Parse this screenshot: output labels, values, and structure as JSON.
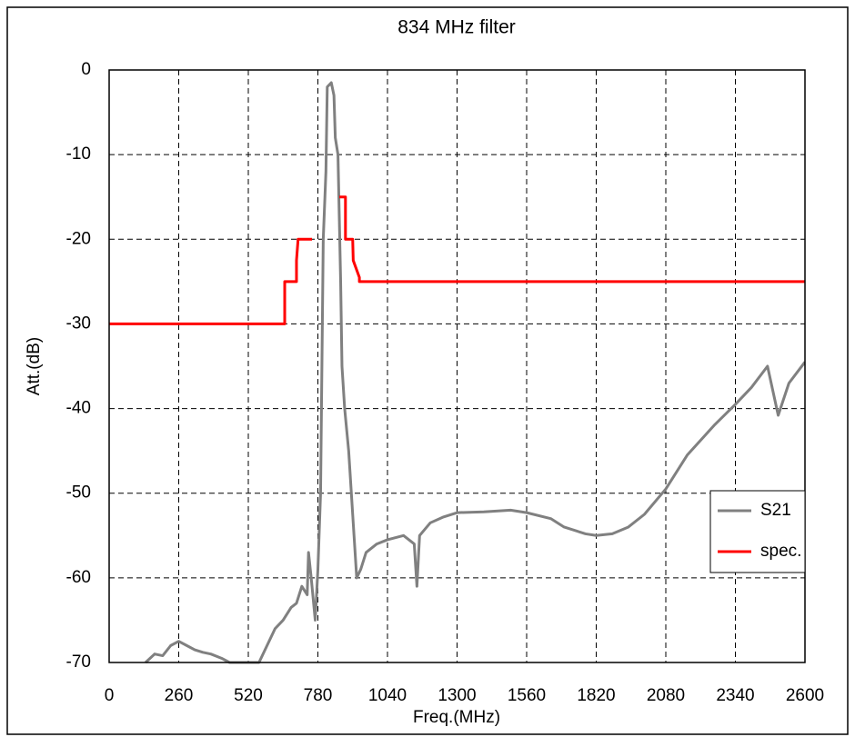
{
  "chart_data": {
    "type": "line",
    "title": "834 MHz filter",
    "x_label": "Freq.(MHz)",
    "y_label": "Att.(dB)",
    "xlim": [
      0,
      2600
    ],
    "xticks": [
      0,
      260,
      520,
      780,
      1040,
      1300,
      1560,
      1820,
      2080,
      2340,
      2600
    ],
    "ylim": [
      -70,
      0
    ],
    "yticks": [
      0,
      -10,
      -20,
      -30,
      -40,
      -50,
      -60,
      -70
    ],
    "grid": true,
    "legend": "right",
    "series": [
      {
        "name": "S21",
        "color": "#808080",
        "x": [
          136,
          170,
          200,
          230,
          260,
          290,
          320,
          350,
          380,
          420,
          450,
          476,
          544,
          560,
          590,
          620,
          650,
          680,
          700,
          720,
          740,
          745,
          755,
          770,
          780,
          790,
          800,
          810,
          815,
          830,
          840,
          845,
          855,
          865,
          870,
          880,
          895,
          905,
          915,
          925,
          940,
          960,
          1000,
          1040,
          1100,
          1140,
          1150,
          1160,
          1200,
          1250,
          1300,
          1400,
          1500,
          1560,
          1650,
          1700,
          1780,
          1820,
          1880,
          1940,
          2000,
          2080,
          2160,
          2260,
          2340,
          2400,
          2460,
          2500,
          2540,
          2600
        ],
        "values": [
          -70,
          -69,
          -69.2,
          -68,
          -67.5,
          -68,
          -68.5,
          -68.8,
          -69,
          -69.5,
          -70,
          -70,
          -70,
          -70,
          -68,
          -66,
          -65,
          -63.5,
          -63,
          -61,
          -62,
          -57,
          -60,
          -65,
          -59,
          -50,
          -20,
          -12,
          -2,
          -1.5,
          -3,
          -8,
          -10,
          -25,
          -35,
          -40,
          -45,
          -50,
          -55,
          -60,
          -59,
          -57,
          -56,
          -55.5,
          -55,
          -56,
          -61,
          -55,
          -53.5,
          -52.8,
          -52.3,
          -52.2,
          -52,
          -52.3,
          -53,
          -54,
          -54.8,
          -55,
          -54.8,
          -54,
          -52.5,
          -49.5,
          -45.5,
          -42,
          -39.5,
          -37.5,
          -35,
          -40.8,
          -37,
          -34.5
        ]
      },
      {
        "name": "spec.",
        "color": "#ff0000",
        "x": [
          0,
          656,
          656,
          700,
          700,
          706,
          758,
          810,
          860,
          883,
          883,
          910,
          912,
          935,
          935,
          2600
        ],
        "values": [
          -30,
          -30,
          -25,
          -25,
          -22.5,
          -20,
          -20,
          null,
          -15,
          -15,
          -20,
          -20,
          -22.5,
          -24.5,
          -25,
          -25
        ]
      }
    ]
  }
}
